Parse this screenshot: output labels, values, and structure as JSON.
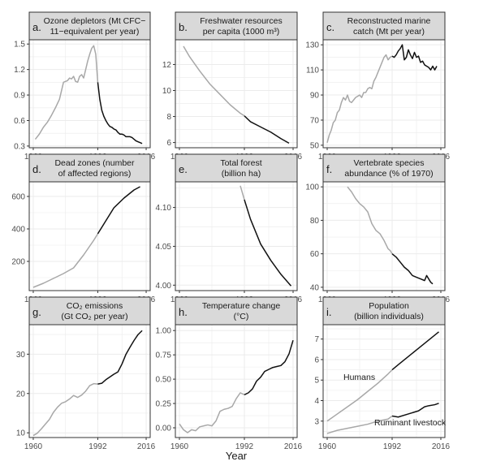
{
  "figure": {
    "shared_xlabel": "Year",
    "x_ticks": [
      "1960",
      "1992",
      "2016"
    ],
    "colors": {
      "before_1992": "#a8a8a8",
      "after_1992": "#111111",
      "strip_fill": "#d9d9d9",
      "strip_border": "#333333",
      "grid": "#ebebeb"
    }
  },
  "chart_data": [
    {
      "type": "line",
      "panel": "a.",
      "title": [
        "Ozone depletors (Mt CFC−",
        "11−equivalent per year)"
      ],
      "ylim": [
        0.28,
        1.55
      ],
      "y_ticks": [
        0.3,
        0.6,
        0.9,
        1.2,
        1.5
      ],
      "y_tick_labels": [
        "0.3",
        "0.6",
        "0.9",
        "1.2",
        "1.5"
      ],
      "series": [
        {
          "x": [
            1961,
            1963,
            1965,
            1967,
            1969,
            1971,
            1973,
            1974,
            1975,
            1976,
            1977,
            1978,
            1979,
            1980,
            1981,
            1982,
            1983,
            1984,
            1985,
            1986,
            1987,
            1988,
            1989,
            1990,
            1991,
            1992,
            1993,
            1994,
            1995,
            1996,
            1997,
            1998,
            1999,
            2000,
            2001,
            2002,
            2003,
            2004,
            2005,
            2006,
            2007,
            2008,
            2009,
            2010,
            2011,
            2012,
            2013,
            2014
          ],
          "values": [
            0.38,
            0.44,
            0.52,
            0.58,
            0.66,
            0.75,
            0.85,
            0.95,
            1.05,
            1.06,
            1.07,
            1.1,
            1.09,
            1.12,
            1.06,
            1.05,
            1.12,
            1.14,
            1.1,
            1.2,
            1.3,
            1.38,
            1.45,
            1.48,
            1.38,
            1.05,
            0.85,
            0.72,
            0.65,
            0.6,
            0.56,
            0.53,
            0.52,
            0.5,
            0.49,
            0.46,
            0.44,
            0.44,
            0.43,
            0.41,
            0.41,
            0.41,
            0.4,
            0.38,
            0.36,
            0.35,
            0.34,
            0.33
          ]
        }
      ]
    },
    {
      "type": "line",
      "panel": "b.",
      "title": [
        "Freshwater resources",
        "per capita (1000 m³)"
      ],
      "ylim": [
        5.6,
        13.9
      ],
      "y_ticks": [
        6,
        8,
        10,
        12
      ],
      "y_tick_labels": [
        "6",
        "8",
        "10",
        "12"
      ],
      "series": [
        {
          "x": [
            1962,
            1965,
            1970,
            1975,
            1980,
            1985,
            1990,
            1992,
            1995,
            2000,
            2005,
            2010,
            2014
          ],
          "values": [
            13.4,
            12.6,
            11.5,
            10.5,
            9.7,
            8.9,
            8.25,
            8.05,
            7.6,
            7.2,
            6.8,
            6.3,
            5.95
          ]
        }
      ]
    },
    {
      "type": "line",
      "panel": "c.",
      "title": [
        "Reconstructed marine",
        "catch (Mt per year)"
      ],
      "ylim": [
        48,
        134
      ],
      "y_ticks": [
        50,
        70,
        90,
        110,
        130
      ],
      "y_tick_labels": [
        "50",
        "70",
        "90",
        "110",
        "130"
      ],
      "series": [
        {
          "x": [
            1960,
            1961,
            1962,
            1963,
            1964,
            1965,
            1966,
            1967,
            1968,
            1969,
            1970,
            1971,
            1972,
            1973,
            1974,
            1975,
            1976,
            1977,
            1978,
            1979,
            1980,
            1981,
            1982,
            1983,
            1984,
            1985,
            1986,
            1987,
            1988,
            1989,
            1990,
            1991,
            1992,
            1993,
            1994,
            1995,
            1996,
            1997,
            1998,
            1999,
            2000,
            2001,
            2002,
            2003,
            2004,
            2005,
            2006,
            2007,
            2008,
            2009,
            2010,
            2011,
            2012,
            2013,
            2014
          ],
          "values": [
            52,
            58,
            62,
            68,
            70,
            76,
            78,
            84,
            88,
            86,
            90,
            85,
            84,
            86,
            88,
            89,
            90,
            88,
            92,
            92,
            95,
            96,
            95,
            101,
            104,
            108,
            112,
            116,
            120,
            122,
            118,
            120,
            121,
            120,
            122,
            125,
            127,
            130,
            118,
            120,
            126,
            122,
            119,
            124,
            120,
            121,
            116,
            117,
            114,
            113,
            112,
            110,
            113,
            110,
            113
          ]
        }
      ]
    },
    {
      "type": "line",
      "panel": "d.",
      "title": [
        "Dead zones (number",
        "of affected regions)"
      ],
      "ylim": [
        20,
        690
      ],
      "y_ticks": [
        200,
        400,
        600
      ],
      "y_tick_labels": [
        "200",
        "400",
        "600"
      ],
      "series": [
        {
          "x": [
            1960,
            1965,
            1970,
            1975,
            1980,
            1985,
            1990,
            1992,
            1995,
            2000,
            2005,
            2008,
            2010,
            2013
          ],
          "values": [
            40,
            65,
            95,
            125,
            160,
            240,
            330,
            370,
            430,
            530,
            590,
            620,
            640,
            660
          ]
        }
      ]
    },
    {
      "type": "line",
      "panel": "e.",
      "title": [
        "Total forest",
        "(billion ha)"
      ],
      "ylim": [
        3.993,
        4.133
      ],
      "y_ticks": [
        4.0,
        4.05,
        4.1
      ],
      "y_tick_labels": [
        "4.00",
        "4.05",
        "4.10"
      ],
      "series": [
        {
          "x": [
            1990,
            1991,
            1992,
            1995,
            2000,
            2005,
            2010,
            2015
          ],
          "values": [
            4.128,
            4.119,
            4.11,
            4.085,
            4.053,
            4.032,
            4.014,
            3.999
          ]
        }
      ]
    },
    {
      "type": "line",
      "panel": "f.",
      "title": [
        "Vertebrate species",
        "abundance (% of 1970)"
      ],
      "ylim": [
        38,
        103
      ],
      "y_ticks": [
        40,
        60,
        80,
        100
      ],
      "y_tick_labels": [
        "40",
        "60",
        "80",
        "100"
      ],
      "series": [
        {
          "x": [
            1970,
            1972,
            1974,
            1976,
            1978,
            1980,
            1982,
            1984,
            1986,
            1988,
            1990,
            1991,
            1992,
            1994,
            1996,
            1998,
            2000,
            2002,
            2004,
            2006,
            2008,
            2009,
            2010,
            2011,
            2012
          ],
          "values": [
            100,
            97,
            93,
            90,
            88,
            85,
            78,
            74,
            72,
            68,
            63,
            62,
            60,
            58,
            55,
            52,
            50,
            47,
            46,
            45,
            44,
            47,
            45,
            43,
            42
          ]
        }
      ]
    },
    {
      "type": "line",
      "panel": "g.",
      "title": [
        "CO₂ emissions",
        "(Gt CO₂ per year)"
      ],
      "ylim": [
        8.8,
        37.5
      ],
      "y_ticks": [
        10,
        20,
        30
      ],
      "y_tick_labels": [
        "10",
        "20",
        "30"
      ],
      "series": [
        {
          "x": [
            1960,
            1962,
            1964,
            1966,
            1968,
            1970,
            1972,
            1974,
            1976,
            1978,
            1980,
            1982,
            1984,
            1986,
            1988,
            1990,
            1992,
            1994,
            1996,
            1998,
            2000,
            2002,
            2004,
            2006,
            2008,
            2010,
            2012,
            2014
          ],
          "values": [
            9.3,
            9.9,
            11,
            12.2,
            13.4,
            15.2,
            16.5,
            17.5,
            17.9,
            18.6,
            19.5,
            19,
            19.6,
            20.6,
            22,
            22.5,
            22.4,
            22.6,
            23.5,
            24.2,
            24.9,
            25.5,
            27.5,
            30,
            31.8,
            33.5,
            35,
            36
          ]
        }
      ]
    },
    {
      "type": "line",
      "panel": "h.",
      "title": [
        "Temperature change",
        "(°C)"
      ],
      "ylim": [
        -0.1,
        1.06
      ],
      "y_ticks": [
        0.0,
        0.25,
        0.5,
        0.75,
        1.0
      ],
      "y_tick_labels": [
        "0.00",
        "0.25",
        "0.50",
        "0.75",
        "1.00"
      ],
      "series": [
        {
          "x": [
            1960,
            1962,
            1964,
            1966,
            1968,
            1970,
            1972,
            1974,
            1976,
            1978,
            1980,
            1982,
            1984,
            1986,
            1988,
            1990,
            1992,
            1994,
            1996,
            1998,
            2000,
            2002,
            2004,
            2006,
            2008,
            2010,
            2012,
            2014,
            2016
          ],
          "values": [
            0.04,
            -0.02,
            -0.05,
            -0.02,
            -0.03,
            0.01,
            0.02,
            0.03,
            0.02,
            0.07,
            0.17,
            0.19,
            0.2,
            0.22,
            0.3,
            0.36,
            0.34,
            0.36,
            0.4,
            0.48,
            0.52,
            0.58,
            0.6,
            0.62,
            0.63,
            0.64,
            0.68,
            0.76,
            0.9
          ]
        }
      ]
    },
    {
      "type": "line",
      "panel": "i.",
      "title": [
        "Population",
        "(billion individuals)"
      ],
      "ylim": [
        2.2,
        7.7
      ],
      "y_ticks": [
        3,
        4,
        5,
        6,
        7
      ],
      "y_tick_labels": [
        "3",
        "4",
        "5",
        "6",
        "7"
      ],
      "series": [
        {
          "name": "Humans",
          "x": [
            1960,
            1965,
            1970,
            1975,
            1980,
            1985,
            1990,
            1992,
            1995,
            2000,
            2005,
            2010,
            2015
          ],
          "values": [
            3.0,
            3.35,
            3.7,
            4.05,
            4.45,
            4.85,
            5.3,
            5.5,
            5.75,
            6.15,
            6.55,
            6.95,
            7.35
          ]
        },
        {
          "name": "Ruminant livestock",
          "x": [
            1960,
            1965,
            1970,
            1975,
            1980,
            1985,
            1990,
            1992,
            1995,
            2000,
            2005,
            2008,
            2010,
            2013,
            2015
          ],
          "values": [
            2.4,
            2.55,
            2.65,
            2.75,
            2.85,
            3.0,
            3.1,
            3.25,
            3.2,
            3.35,
            3.5,
            3.7,
            3.75,
            3.8,
            3.87
          ]
        }
      ],
      "annotations": [
        "Humans",
        "Ruminant livestock"
      ]
    }
  ]
}
